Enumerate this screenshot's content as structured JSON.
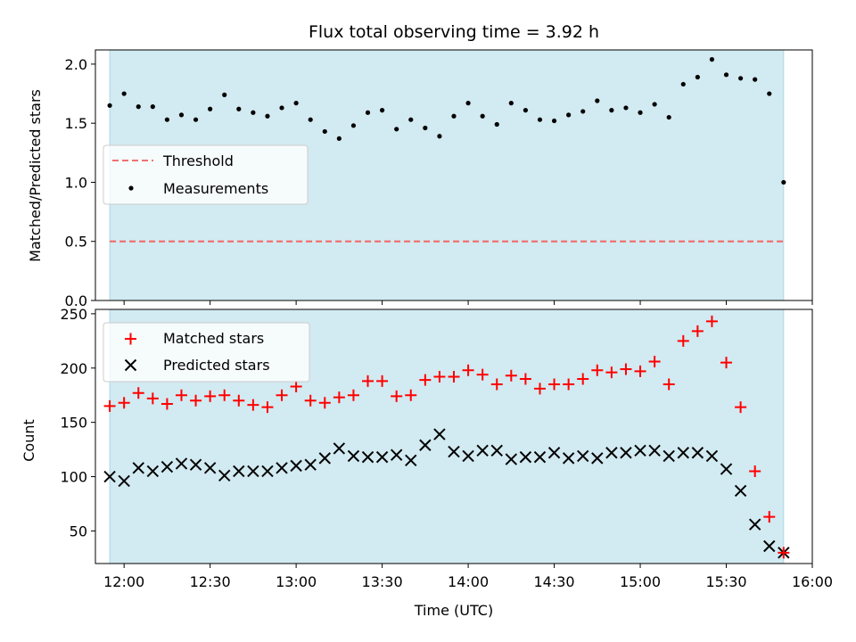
{
  "chart_data": [
    {
      "type": "scatter",
      "title": "Flux total observing time = 3.92 h",
      "xlabel": "",
      "ylabel": "Matched/Predicted stars",
      "ylim": [
        0,
        2.12
      ],
      "yticks": [
        "0.0",
        "0.5",
        "1.0",
        "1.5",
        "2.0"
      ],
      "ytick_values": [
        0,
        0.5,
        1.0,
        1.5,
        2.0
      ],
      "xlim": [
        "11:50",
        "16:00"
      ],
      "shaded_span": [
        "11:55",
        "15:50"
      ],
      "shade_color": "#add8e6",
      "grid": false,
      "legend_position": "center-left",
      "legend": [
        {
          "label": "Threshold",
          "style": "dashed-line",
          "color": "#f07070"
        },
        {
          "label": "Measurements",
          "style": "dot",
          "color": "#000000"
        }
      ],
      "threshold": 0.5,
      "series": [
        {
          "name": "Measurements",
          "color": "#000000",
          "x": [
            "11:55",
            "12:00",
            "12:05",
            "12:10",
            "12:15",
            "12:20",
            "12:25",
            "12:30",
            "12:35",
            "12:40",
            "12:45",
            "12:50",
            "12:55",
            "13:00",
            "13:05",
            "13:10",
            "13:15",
            "13:20",
            "13:25",
            "13:30",
            "13:35",
            "13:40",
            "13:45",
            "13:50",
            "13:55",
            "14:00",
            "14:05",
            "14:10",
            "14:15",
            "14:20",
            "14:25",
            "14:30",
            "14:35",
            "14:40",
            "14:45",
            "14:50",
            "14:55",
            "15:00",
            "15:05",
            "15:10",
            "15:15",
            "15:20",
            "15:25",
            "15:30",
            "15:35",
            "15:40",
            "15:45",
            "15:50"
          ],
          "y": [
            1.65,
            1.75,
            1.64,
            1.64,
            1.53,
            1.57,
            1.53,
            1.62,
            1.74,
            1.62,
            1.59,
            1.56,
            1.63,
            1.67,
            1.53,
            1.43,
            1.37,
            1.48,
            1.59,
            1.61,
            1.45,
            1.53,
            1.46,
            1.39,
            1.56,
            1.67,
            1.56,
            1.49,
            1.67,
            1.61,
            1.53,
            1.52,
            1.57,
            1.6,
            1.69,
            1.61,
            1.63,
            1.59,
            1.66,
            1.55,
            1.83,
            1.89,
            2.04,
            1.91,
            1.88,
            1.87,
            1.75,
            1.0
          ]
        }
      ]
    },
    {
      "type": "scatter",
      "title": "",
      "xlabel": "Time (UTC)",
      "ylabel": "Count",
      "ylim": [
        20,
        254
      ],
      "yticks": [
        "50",
        "100",
        "150",
        "200",
        "250"
      ],
      "ytick_values": [
        50,
        100,
        150,
        200,
        250
      ],
      "xlim": [
        "11:50",
        "16:00"
      ],
      "xticks": [
        "12:00",
        "12:30",
        "13:00",
        "13:30",
        "14:00",
        "14:30",
        "15:00",
        "15:30",
        "16:00"
      ],
      "shaded_span": [
        "11:55",
        "15:50"
      ],
      "shade_color": "#add8e6",
      "grid": false,
      "legend_position": "top-left",
      "categories_x": [
        "11:55",
        "12:00",
        "12:05",
        "12:10",
        "12:15",
        "12:20",
        "12:25",
        "12:30",
        "12:35",
        "12:40",
        "12:45",
        "12:50",
        "12:55",
        "13:00",
        "13:05",
        "13:10",
        "13:15",
        "13:20",
        "13:25",
        "13:30",
        "13:35",
        "13:40",
        "13:45",
        "13:50",
        "13:55",
        "14:00",
        "14:05",
        "14:10",
        "14:15",
        "14:20",
        "14:25",
        "14:30",
        "14:35",
        "14:40",
        "14:45",
        "14:50",
        "14:55",
        "15:00",
        "15:05",
        "15:10",
        "15:15",
        "15:20",
        "15:25",
        "15:30",
        "15:35",
        "15:40",
        "15:45",
        "15:50"
      ],
      "series": [
        {
          "name": "Matched stars",
          "marker": "plus",
          "color": "#ff0000",
          "values": [
            165,
            168,
            177,
            172,
            167,
            175,
            170,
            174,
            175,
            170,
            166,
            164,
            175,
            183,
            170,
            168,
            173,
            175,
            188,
            188,
            174,
            175,
            189,
            192,
            192,
            198,
            194,
            185,
            193,
            190,
            181,
            185,
            185,
            190,
            198,
            196,
            199,
            197,
            206,
            185,
            225,
            234,
            243,
            205,
            164,
            105,
            63,
            30
          ]
        },
        {
          "name": "Predicted stars",
          "marker": "x",
          "color": "#000000",
          "values": [
            100,
            96,
            108,
            105,
            109,
            112,
            111,
            108,
            101,
            105,
            105,
            105,
            108,
            110,
            111,
            117,
            126,
            119,
            118,
            118,
            120,
            115,
            129,
            139,
            123,
            119,
            124,
            124,
            116,
            118,
            118,
            122,
            117,
            119,
            117,
            122,
            122,
            124,
            124,
            119,
            122,
            122,
            119,
            107,
            87,
            56,
            36,
            30
          ]
        }
      ]
    }
  ]
}
